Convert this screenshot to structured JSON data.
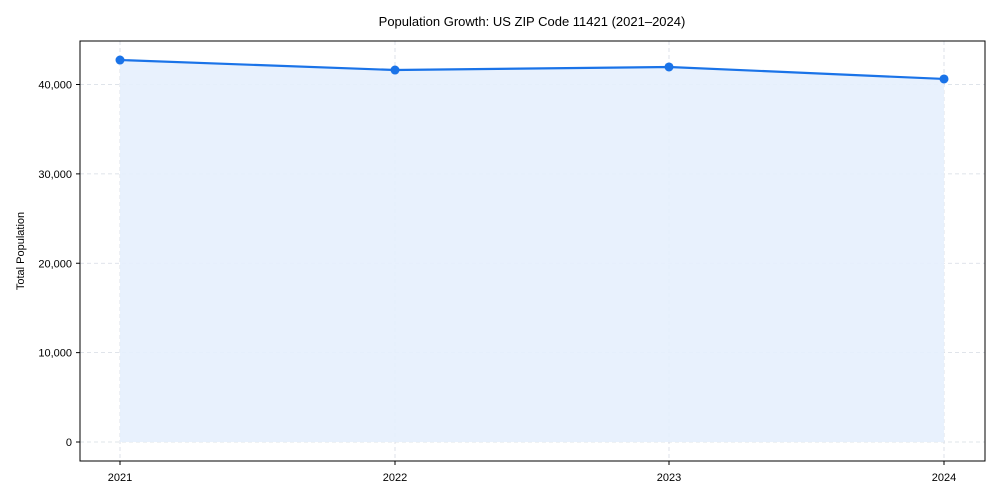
{
  "chart_data": {
    "type": "area",
    "title": "Population Growth: US ZIP Code 11421 (2021–2024)",
    "xlabel": "",
    "ylabel": "Total Population",
    "categories": [
      "2021",
      "2022",
      "2023",
      "2024"
    ],
    "series": [
      {
        "name": "Total Population",
        "values": [
          42740,
          41620,
          41960,
          40620
        ]
      }
    ],
    "ylim": [
      -2100,
      45000
    ],
    "yticks": [
      0,
      10000,
      20000,
      30000,
      40000
    ],
    "ytick_labels": [
      "0",
      "10,000",
      "20,000",
      "30,000",
      "40,000"
    ],
    "grid": true,
    "legend": false,
    "colors": {
      "line": "#1a73e8",
      "fill": "#e6f0fd",
      "grid": "#d5dbe3",
      "axis": "#000000"
    }
  }
}
